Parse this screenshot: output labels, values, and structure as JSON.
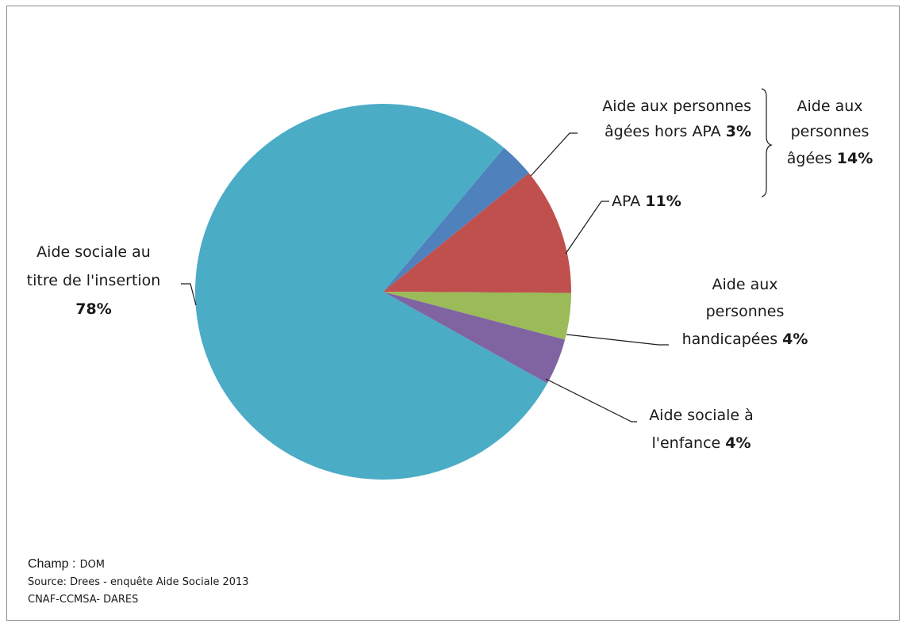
{
  "chart_data": {
    "type": "pie",
    "slices": [
      {
        "key": "pa_hors_apa",
        "value": 3,
        "color": "#4f81bd",
        "label_lines": [
          "Aide aux personnes",
          "âgées hors APA"
        ],
        "pct": "3%"
      },
      {
        "key": "apa",
        "value": 11,
        "color": "#c0504d",
        "label_lines": [
          "APA"
        ],
        "pct": "11%"
      },
      {
        "key": "handicap",
        "value": 4,
        "color": "#9bbb59",
        "label_lines": [
          "Aide aux",
          "personnes",
          "handicapées"
        ],
        "pct": "4%"
      },
      {
        "key": "enfance",
        "value": 4,
        "color": "#8064a2",
        "label_lines": [
          "Aide sociale à",
          "l'enfance"
        ],
        "pct": "4%"
      },
      {
        "key": "insertion",
        "value": 78,
        "color": "#4bacc6",
        "label_lines": [
          "Aide sociale au",
          "titre de l'insertion"
        ],
        "pct": "78%"
      }
    ],
    "group_label": {
      "lines": [
        "Aide aux",
        "personnes",
        "âgées"
      ],
      "pct": "14%"
    }
  },
  "footer": {
    "champ_label": "Champ :",
    "champ_value": "DOM",
    "source": "Source: Drees - enquête Aide Sociale 2013",
    "partners": "CNAF-CCMSA- DARES"
  }
}
